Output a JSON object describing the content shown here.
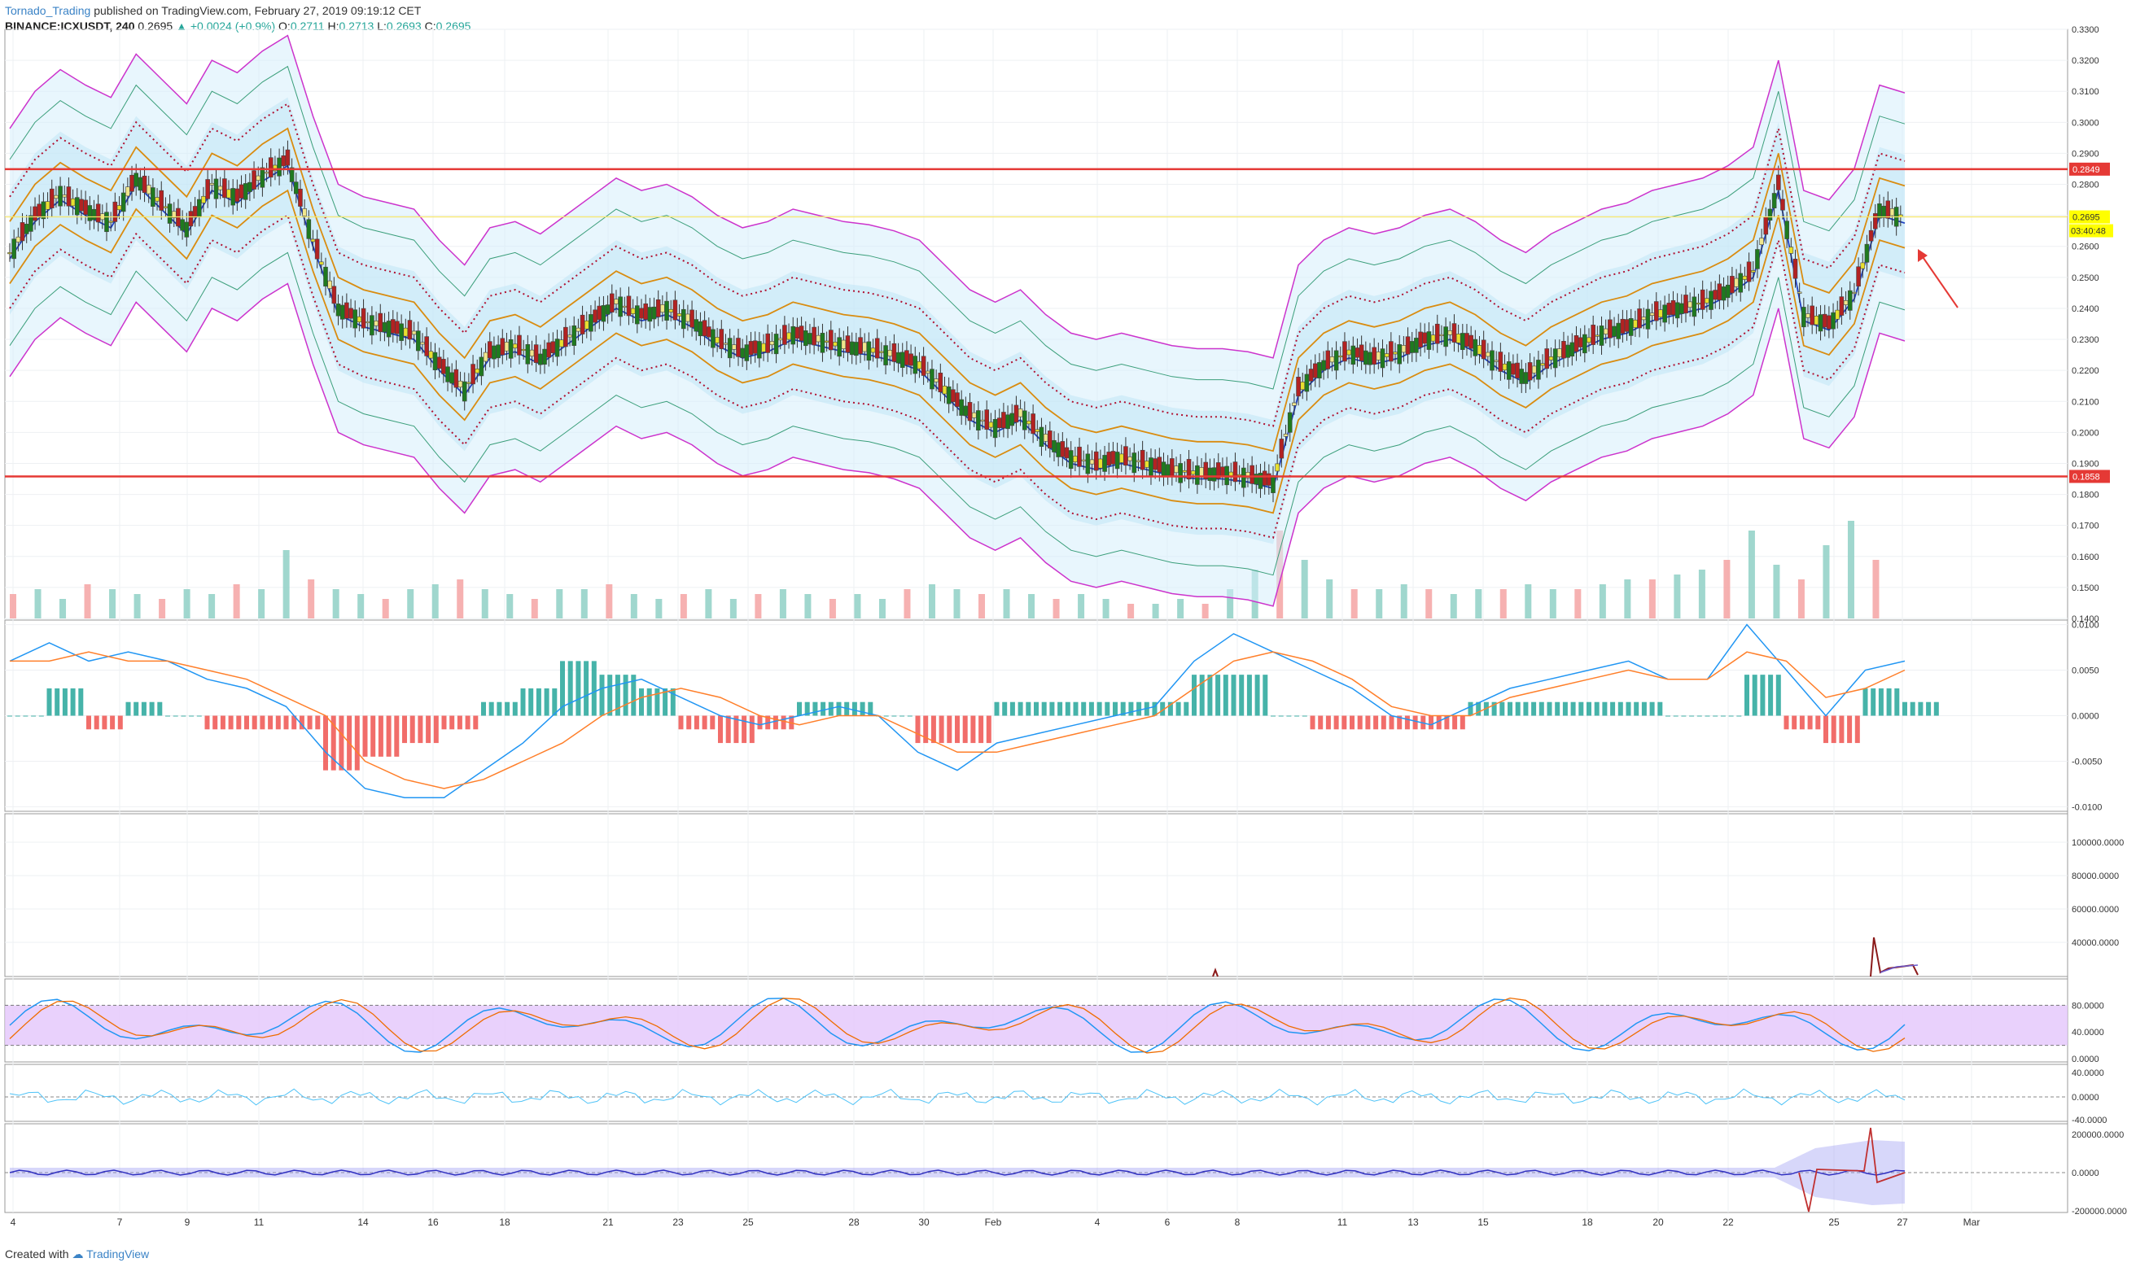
{
  "header": {
    "author": "Tornado_Trading",
    "published_text": "published on TradingView.com, February 27, 2019 09:19:12 CET",
    "symbol_line": "BINANCE:ICXUSDT, 240",
    "last": "0.2695",
    "change": "▲ +0.0024 (+0.9%)",
    "o_label": "O:",
    "o": "0.2711",
    "h_label": "H:",
    "h": "0.2713",
    "l_label": "L:",
    "l": "0.2693",
    "c_label": "C:",
    "c": "0.2695"
  },
  "footer": {
    "created_with": "Created with",
    "brand": "TradingView"
  },
  "colors": {
    "up": "#26a69a",
    "down": "#ef5350",
    "candle_up": "#1f7a1f",
    "candle_down": "#b22222",
    "candle_small_up": "#e8e030",
    "resistance": "#e53935",
    "band_outer": "#cc33cc",
    "band_mid": "#3a9e7a",
    "band_inner": "#d98c10",
    "basis": "#1f3fbf",
    "macd": "#2196f3",
    "signal": "#ff7f2a",
    "stoch_fill": "#e3c6fb",
    "arrow": "#e53935"
  },
  "chart_data": [
    {
      "type": "candlestick",
      "name": "price",
      "ylim": [
        0.14,
        0.33
      ],
      "y_ticks": [
        "0.3300",
        "0.3200",
        "0.3100",
        "0.3000",
        "0.2900",
        "0.2800",
        "0.2700",
        "0.2600",
        "0.2500",
        "0.2400",
        "0.2300",
        "0.2200",
        "0.2100",
        "0.2000",
        "0.1900",
        "0.1800",
        "0.1700",
        "0.1600",
        "0.1500",
        "0.1400"
      ],
      "x_ticks": [
        "4",
        "7",
        "9",
        "11",
        "14",
        "16",
        "18",
        "21",
        "23",
        "25",
        "28",
        "30",
        "Feb",
        "4",
        "6",
        "8",
        "11",
        "13",
        "15",
        "18",
        "20",
        "22",
        "25",
        "27",
        "Mar"
      ],
      "close_path": [
        0.258,
        0.27,
        0.277,
        0.272,
        0.268,
        0.282,
        0.274,
        0.266,
        0.28,
        0.276,
        0.283,
        0.288,
        0.262,
        0.24,
        0.236,
        0.234,
        0.232,
        0.222,
        0.214,
        0.226,
        0.228,
        0.224,
        0.23,
        0.236,
        0.242,
        0.238,
        0.24,
        0.236,
        0.23,
        0.226,
        0.228,
        0.232,
        0.23,
        0.228,
        0.227,
        0.225,
        0.222,
        0.214,
        0.206,
        0.202,
        0.206,
        0.198,
        0.192,
        0.19,
        0.192,
        0.19,
        0.188,
        0.187,
        0.187,
        0.186,
        0.184,
        0.214,
        0.222,
        0.226,
        0.224,
        0.226,
        0.23,
        0.232,
        0.228,
        0.222,
        0.218,
        0.224,
        0.228,
        0.232,
        0.234,
        0.238,
        0.24,
        0.242,
        0.246,
        0.252,
        0.28,
        0.238,
        0.235,
        0.245,
        0.272,
        0.2695
      ],
      "resistance_levels": [
        0.2849,
        0.1858
      ],
      "last_price_label": "0.2695",
      "countdown_label": "03:40:48",
      "resistance_labels": [
        "0.2849",
        "0.1858"
      ],
      "volume_shown": true,
      "volume_heights": [
        0.25,
        0.3,
        0.2,
        0.35,
        0.3,
        0.25,
        0.2,
        0.3,
        0.25,
        0.35,
        0.3,
        0.7,
        0.4,
        0.3,
        0.25,
        0.2,
        0.3,
        0.35,
        0.4,
        0.3,
        0.25,
        0.2,
        0.3,
        0.3,
        0.35,
        0.25,
        0.2,
        0.25,
        0.3,
        0.2,
        0.25,
        0.3,
        0.25,
        0.2,
        0.25,
        0.2,
        0.3,
        0.35,
        0.3,
        0.25,
        0.3,
        0.25,
        0.2,
        0.25,
        0.2,
        0.15,
        0.15,
        0.2,
        0.15,
        0.3,
        0.5,
        0.9,
        0.6,
        0.4,
        0.3,
        0.3,
        0.35,
        0.3,
        0.25,
        0.3,
        0.3,
        0.35,
        0.3,
        0.3,
        0.35,
        0.4,
        0.4,
        0.45,
        0.5,
        0.6,
        0.9,
        0.55,
        0.4,
        0.75,
        1.0,
        0.6
      ]
    },
    {
      "type": "macd",
      "ylim": [
        -0.0105,
        0.0105
      ],
      "y_ticks": [
        "0.0100",
        "0.0050",
        "0.0000",
        "-0.0050",
        "-0.0100"
      ],
      "macd": [
        0.006,
        0.008,
        0.006,
        0.007,
        0.006,
        0.004,
        0.003,
        0.001,
        -0.004,
        -0.008,
        -0.009,
        -0.009,
        -0.006,
        -0.003,
        0.001,
        0.003,
        0.004,
        0.002,
        0.0,
        -0.001,
        0.0,
        0.001,
        0.0,
        -0.004,
        -0.006,
        -0.003,
        -0.002,
        -0.001,
        0.0,
        0.001,
        0.006,
        0.009,
        0.007,
        0.005,
        0.003,
        0.0,
        -0.001,
        0.001,
        0.003,
        0.004,
        0.005,
        0.006,
        0.004,
        0.004,
        0.01,
        0.005,
        0.0,
        0.005,
        0.006
      ],
      "signal": [
        0.006,
        0.006,
        0.007,
        0.006,
        0.006,
        0.005,
        0.004,
        0.002,
        0.0,
        -0.005,
        -0.007,
        -0.008,
        -0.007,
        -0.005,
        -0.003,
        0.0,
        0.002,
        0.003,
        0.002,
        0.0,
        -0.001,
        0.0,
        0.0,
        -0.002,
        -0.004,
        -0.004,
        -0.003,
        -0.002,
        -0.001,
        0.0,
        0.003,
        0.006,
        0.007,
        0.006,
        0.004,
        0.001,
        0.0,
        0.0,
        0.002,
        0.003,
        0.004,
        0.005,
        0.004,
        0.004,
        0.007,
        0.006,
        0.002,
        0.003,
        0.005
      ]
    },
    {
      "type": "line",
      "name": "oscillator",
      "y_ticks": [
        "100000.0000",
        "80000.0000",
        "60000.0000",
        "40000.0000"
      ]
    },
    {
      "type": "stochastic",
      "ylim": [
        0,
        100
      ],
      "y_ticks": [
        "80.0000",
        "40.0000",
        "0.0000"
      ],
      "band": [
        20,
        80
      ]
    },
    {
      "type": "line",
      "name": "momentum",
      "y_ticks": [
        "40.0000",
        "0.0000",
        "-40.0000"
      ]
    },
    {
      "type": "line",
      "name": "volume-oscillator",
      "y_ticks": [
        "200000.0000",
        "0.0000",
        "-200000.0000"
      ]
    }
  ]
}
